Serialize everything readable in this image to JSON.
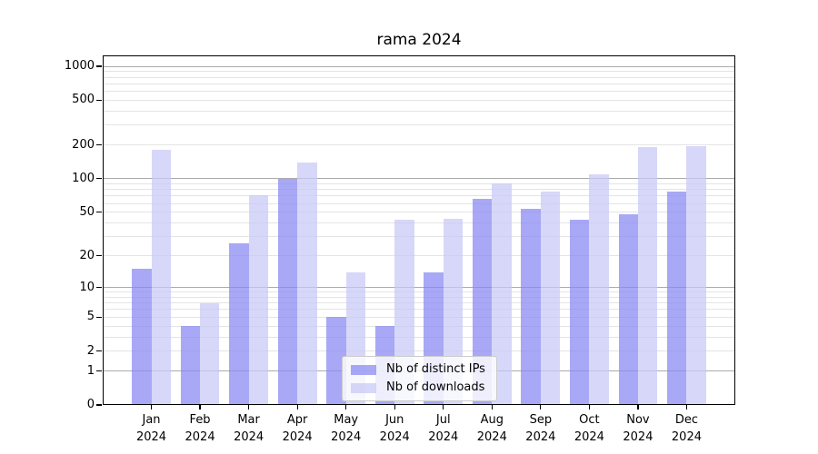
{
  "chart_data": {
    "type": "bar",
    "title": "rama 2024",
    "categories": [
      "Jan",
      "Feb",
      "Mar",
      "Apr",
      "May",
      "Jun",
      "Jul",
      "Aug",
      "Sep",
      "Oct",
      "Nov",
      "Dec"
    ],
    "x_year_line": "2024",
    "series": [
      {
        "name": "Nb of distinct IPs",
        "color": "rgba(134,134,242,0.72)",
        "values": [
          15,
          4,
          26,
          100,
          5,
          4,
          14,
          66,
          54,
          43,
          48,
          77
        ]
      },
      {
        "name": "Nb of downloads",
        "color": "rgba(200,200,247,0.72)",
        "values": [
          180,
          7,
          71,
          140,
          14,
          43,
          44,
          90,
          77,
          110,
          190,
          195
        ]
      }
    ],
    "y_ticks": [
      0,
      1,
      2,
      5,
      10,
      20,
      50,
      100,
      200,
      500,
      1000
    ],
    "y_major_gridlines": [
      1,
      10,
      100,
      1000
    ],
    "scale": "log10(1+x)",
    "ylim": [
      0,
      1200
    ],
    "grid": true,
    "legend_position": "lower center",
    "colors": {
      "major_grid": "#ababab",
      "minor_grid": "#e4e4e4",
      "axis": "#000000",
      "background": "#ffffff"
    }
  }
}
